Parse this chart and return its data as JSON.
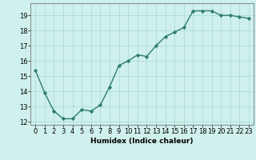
{
  "x": [
    0,
    1,
    2,
    3,
    4,
    5,
    6,
    7,
    8,
    9,
    10,
    11,
    12,
    13,
    14,
    15,
    16,
    17,
    18,
    19,
    20,
    21,
    22,
    23
  ],
  "y": [
    15.4,
    13.9,
    12.7,
    12.2,
    12.2,
    12.8,
    12.7,
    13.1,
    14.3,
    15.7,
    16.0,
    16.4,
    16.3,
    17.0,
    17.6,
    17.9,
    18.2,
    19.3,
    19.3,
    19.3,
    19.0,
    19.0,
    18.9,
    18.8
  ],
  "line_color": "#2e7d6e",
  "marker": "D",
  "marker_size": 2.2,
  "bg_color": "#cff0ec",
  "grid_color": "#aaddd8",
  "xlabel": "Humidex (Indice chaleur)",
  "xlim": [
    -0.5,
    23.5
  ],
  "ylim": [
    11.8,
    19.8
  ],
  "yticks": [
    12,
    13,
    14,
    15,
    16,
    17,
    18,
    19
  ],
  "xticks": [
    0,
    1,
    2,
    3,
    4,
    5,
    6,
    7,
    8,
    9,
    10,
    11,
    12,
    13,
    14,
    15,
    16,
    17,
    18,
    19,
    20,
    21,
    22,
    23
  ],
  "xlabel_fontsize": 6.5,
  "tick_fontsize": 6.0,
  "line_width": 1.0
}
